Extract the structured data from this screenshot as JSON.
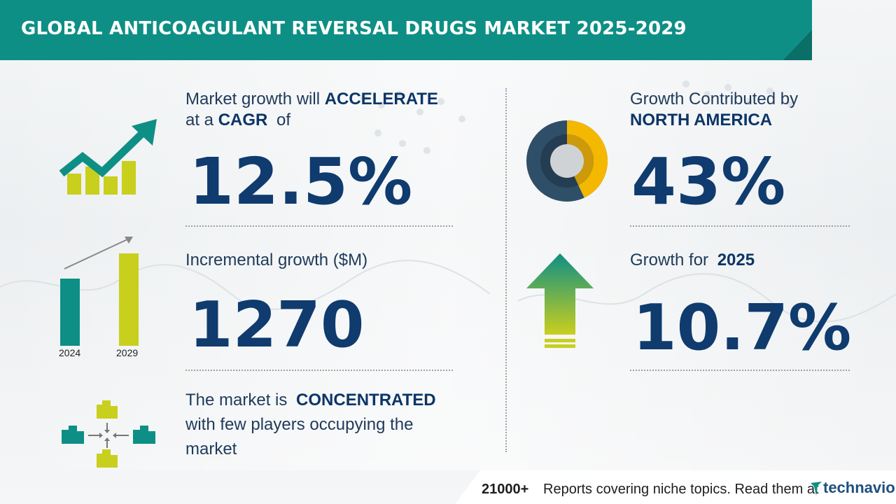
{
  "header": {
    "title": "GLOBAL ANTICOAGULANT REVERSAL DRUGS MARKET 2025-2029"
  },
  "cagr": {
    "line1_pre": "Market growth will",
    "line1_bold": "ACCELERATE",
    "line2_pre": "at a",
    "line2_bold": "CAGR",
    "line2_post": "of",
    "value": "12.5%"
  },
  "incremental": {
    "label": "Incremental growth ($M)",
    "value": "1270",
    "year_start": "2024",
    "year_end": "2029"
  },
  "concentration": {
    "pre": "The market is",
    "bold": "CONCENTRATED",
    "line2": "with few players occupying the",
    "line3": "market"
  },
  "region": {
    "line1": "Growth Contributed by",
    "line2_bold": "NORTH AMERICA",
    "value": "43%",
    "share_fraction": 0.43
  },
  "growth_2025": {
    "pre": "Growth for",
    "year_bold": "2025",
    "value": "10.7%"
  },
  "footer": {
    "count": "21000+",
    "text": "Reports covering niche topics. Read them at",
    "brand": "technavio"
  },
  "colors": {
    "teal": "#0e8f85",
    "yellow": "#c9cf1d",
    "navy": "#0f3b6e",
    "donut_dark": "#2f4f68",
    "donut_yellow": "#f5b800"
  }
}
